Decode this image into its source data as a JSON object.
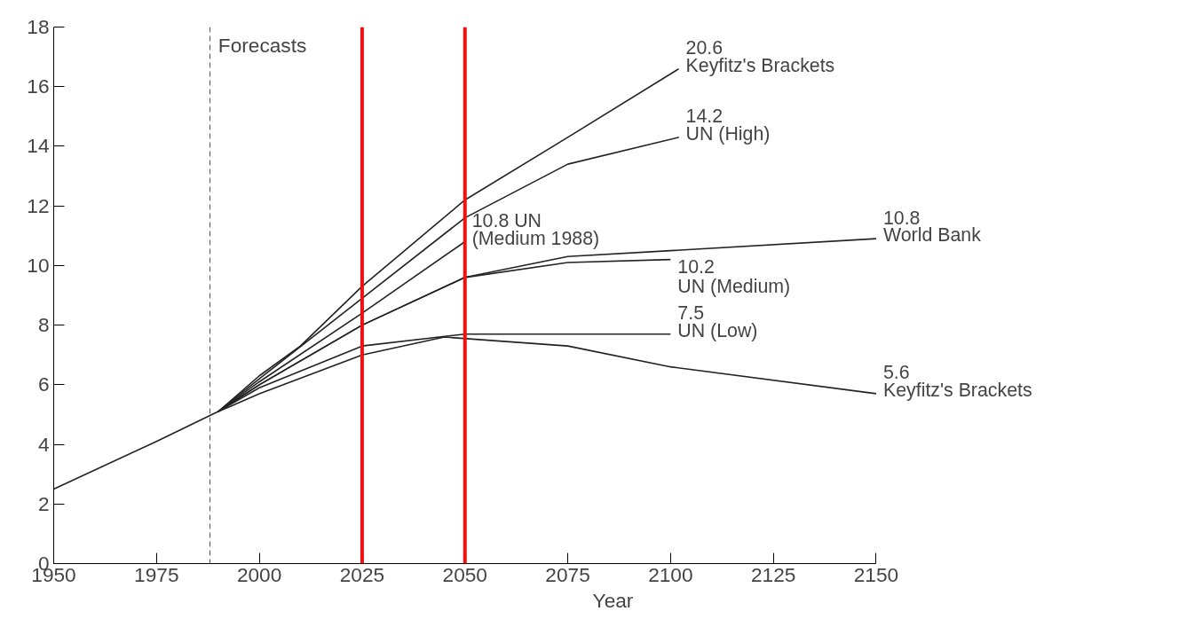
{
  "chart_data": {
    "type": "line",
    "xlabel": "Year",
    "xlim": [
      1950,
      2150
    ],
    "ylim": [
      0,
      18
    ],
    "xticks": [
      1950,
      1975,
      2000,
      2025,
      2050,
      2075,
      2100,
      2125,
      2150
    ],
    "yticks": [
      0,
      2,
      4,
      6,
      8,
      10,
      12,
      14,
      16,
      18
    ],
    "grid": false,
    "marker": "none",
    "line_style": "solid",
    "series": [
      {
        "color": "#222222",
        "x": [
          1990,
          2000,
          2010,
          2025,
          2050,
          2075,
          2102
        ],
        "values": [
          5.1,
          6.3,
          7.3,
          9.3,
          12.2,
          14.3,
          16.6
        ]
      },
      {
        "color": "#222222",
        "x": [
          1990,
          2000,
          2025,
          2050,
          2075,
          2102
        ],
        "values": [
          5.1,
          6.2,
          8.9,
          11.6,
          13.4,
          14.3
        ]
      },
      {
        "color": "#222222",
        "x": [
          1990,
          2000,
          2025,
          2050
        ],
        "values": [
          5.1,
          6.1,
          8.4,
          10.8
        ]
      },
      {
        "color": "#222222",
        "x": [
          1950,
          1975,
          1990,
          2000,
          2025,
          2050,
          2075,
          2100,
          2150
        ],
        "values": [
          2.5,
          4.1,
          5.1,
          6.0,
          8.0,
          9.6,
          10.3,
          10.5,
          10.9
        ]
      },
      {
        "color": "#222222",
        "x": [
          1990,
          2000,
          2025,
          2050,
          2075,
          2100
        ],
        "values": [
          5.1,
          6.0,
          8.0,
          9.6,
          10.1,
          10.2
        ]
      },
      {
        "color": "#222222",
        "x": [
          1990,
          2000,
          2025,
          2050,
          2075,
          2100
        ],
        "values": [
          5.1,
          5.9,
          7.3,
          7.7,
          7.7,
          7.7
        ]
      },
      {
        "color": "#222222",
        "x": [
          1990,
          2000,
          2025,
          2045,
          2075,
          2100,
          2150
        ],
        "values": [
          5.1,
          5.7,
          7.0,
          7.6,
          7.3,
          6.6,
          5.7
        ]
      }
    ],
    "ref_lines": [
      {
        "axis": "x",
        "value": 1988,
        "label": "Forecasts",
        "color": "#555555",
        "line_style": "dashed"
      },
      {
        "axis": "x",
        "value": 2025,
        "label": null,
        "color": "#ee1111",
        "line_style": "solid"
      },
      {
        "axis": "x",
        "value": 2050,
        "label": null,
        "color": "#ee1111",
        "line_style": "solid"
      }
    ],
    "annotations": [
      {
        "text": "20.6",
        "x": 2102,
        "y": 16.6
      },
      {
        "text": "Keyfitz's Brackets",
        "x": 2102,
        "y": 16.6
      },
      {
        "text": "14.2",
        "x": 2102,
        "y": 14.3
      },
      {
        "text": "UN (High)",
        "x": 2102,
        "y": 14.3
      },
      {
        "text": "10.8 UN",
        "x": 2050,
        "y": 10.8
      },
      {
        "text": "(Medium 1988)",
        "x": 2050,
        "y": 10.8
      },
      {
        "text": "10.8",
        "x": 2150,
        "y": 10.9
      },
      {
        "text": "World Bank",
        "x": 2150,
        "y": 10.9
      },
      {
        "text": "10.2",
        "x": 2100,
        "y": 10.2
      },
      {
        "text": "UN (Medium)",
        "x": 2100,
        "y": 10.2
      },
      {
        "text": "7.5",
        "x": 2100,
        "y": 7.7
      },
      {
        "text": "UN (Low)",
        "x": 2100,
        "y": 7.7
      },
      {
        "text": "5.6",
        "x": 2150,
        "y": 5.7
      },
      {
        "text": "Keyfitz's Brackets",
        "x": 2150,
        "y": 5.7
      }
    ]
  }
}
